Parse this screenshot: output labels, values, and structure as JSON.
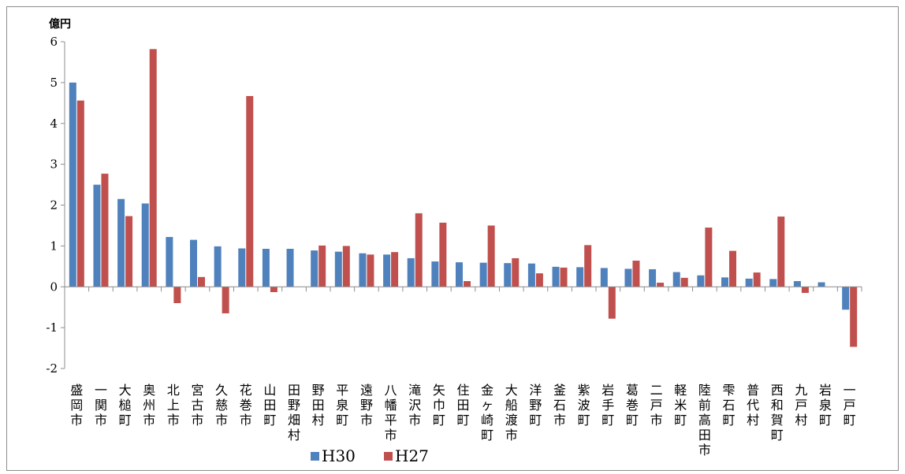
{
  "chart_data": {
    "type": "bar",
    "title": "",
    "xlabel": "",
    "ylabel": "億円",
    "ylim": [
      -2,
      6
    ],
    "yticks": [
      6,
      5,
      4,
      3,
      2,
      1,
      0,
      -1,
      -2
    ],
    "grid": false,
    "legend": "bottom",
    "categories": [
      "盛岡市",
      "一関市",
      "大槌町",
      "奥州市",
      "北上市",
      "宮古市",
      "久慈市",
      "花巻市",
      "山田町",
      "田野畑村",
      "野田村",
      "平泉町",
      "遠野市",
      "八幡平市",
      "滝沢市",
      "矢巾町",
      "住田町",
      "金ヶ崎町",
      "大船渡市",
      "洋野町",
      "釜石市",
      "紫波町",
      "岩手町",
      "葛巻町",
      "二戸市",
      "軽米町",
      "陸前高田市",
      "雫石町",
      "普代村",
      "西和賀町",
      "九戸村",
      "岩泉町",
      "一戸町"
    ],
    "series": [
      {
        "name": "H30",
        "color": "#4f81bd",
        "values": [
          5.0,
          2.5,
          2.15,
          2.04,
          1.22,
          1.15,
          0.99,
          0.94,
          0.93,
          0.93,
          0.89,
          0.86,
          0.82,
          0.79,
          0.7,
          0.62,
          0.6,
          0.59,
          0.58,
          0.57,
          0.49,
          0.48,
          0.46,
          0.44,
          0.43,
          0.36,
          0.28,
          0.23,
          0.2,
          0.19,
          0.14,
          0.11,
          -0.56
        ]
      },
      {
        "name": "H27",
        "color": "#c0504d",
        "values": [
          4.56,
          2.77,
          1.73,
          5.82,
          -0.4,
          0.24,
          -0.65,
          4.67,
          -0.13,
          0.0,
          1.01,
          1.0,
          0.79,
          0.85,
          1.8,
          1.57,
          0.14,
          1.5,
          0.7,
          0.33,
          0.47,
          1.02,
          -0.78,
          0.64,
          0.1,
          0.22,
          1.45,
          0.88,
          0.35,
          1.72,
          -0.15,
          0.0,
          -1.47
        ]
      }
    ]
  }
}
